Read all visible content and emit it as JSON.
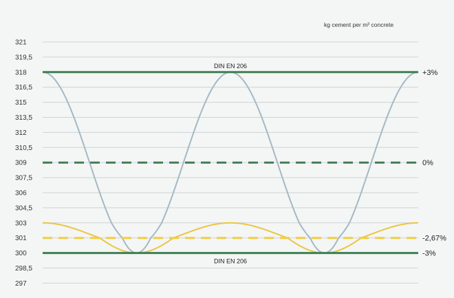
{
  "chart_data": {
    "type": "line",
    "unit_label": "kg cement per m³ concrete",
    "y_ticks": [
      {
        "value": 321,
        "label": "321"
      },
      {
        "value": 319.5,
        "label": "319,5"
      },
      {
        "value": 318,
        "label": "318"
      },
      {
        "value": 316.5,
        "label": "316,5"
      },
      {
        "value": 315,
        "label": "315"
      },
      {
        "value": 313.5,
        "label": "313,5"
      },
      {
        "value": 312,
        "label": "312"
      },
      {
        "value": 310.5,
        "label": "310,5"
      },
      {
        "value": 309,
        "label": "309"
      },
      {
        "value": 307.5,
        "label": "307,5"
      },
      {
        "value": 306,
        "label": "306"
      },
      {
        "value": 304.5,
        "label": "304,5"
      },
      {
        "value": 303,
        "label": "303"
      },
      {
        "value": 301,
        "label": "301"
      },
      {
        "value": 300,
        "label": "300"
      },
      {
        "value": 298.5,
        "label": "298,5"
      },
      {
        "value": 297,
        "label": "297"
      }
    ],
    "grid": true,
    "reference_lines": [
      {
        "value": 318,
        "style": "solid",
        "color": "#3f7f52",
        "text": "DIN EN 206",
        "text_side": "above",
        "pct": "+3%"
      },
      {
        "value": 309,
        "style": "dashed",
        "color": "#3f7f52",
        "text": "",
        "pct": "0%"
      },
      {
        "value": 301,
        "style": "dashed",
        "color": "#f0cf40",
        "text": "",
        "pct": "-2,67%"
      },
      {
        "value": 300,
        "style": "solid",
        "color": "#3f7f52",
        "text": "DIN EN 206",
        "text_side": "below",
        "pct": "-3%"
      }
    ],
    "series": [
      {
        "color": "#a3b9c4",
        "curve": "cosine",
        "max": 318,
        "min": 300,
        "phase": "starts at max",
        "periods": 2
      },
      {
        "color": "#eac640",
        "curve": "cosine",
        "max": 303,
        "min": 300,
        "phase": "starts at max",
        "periods": 2
      }
    ]
  }
}
